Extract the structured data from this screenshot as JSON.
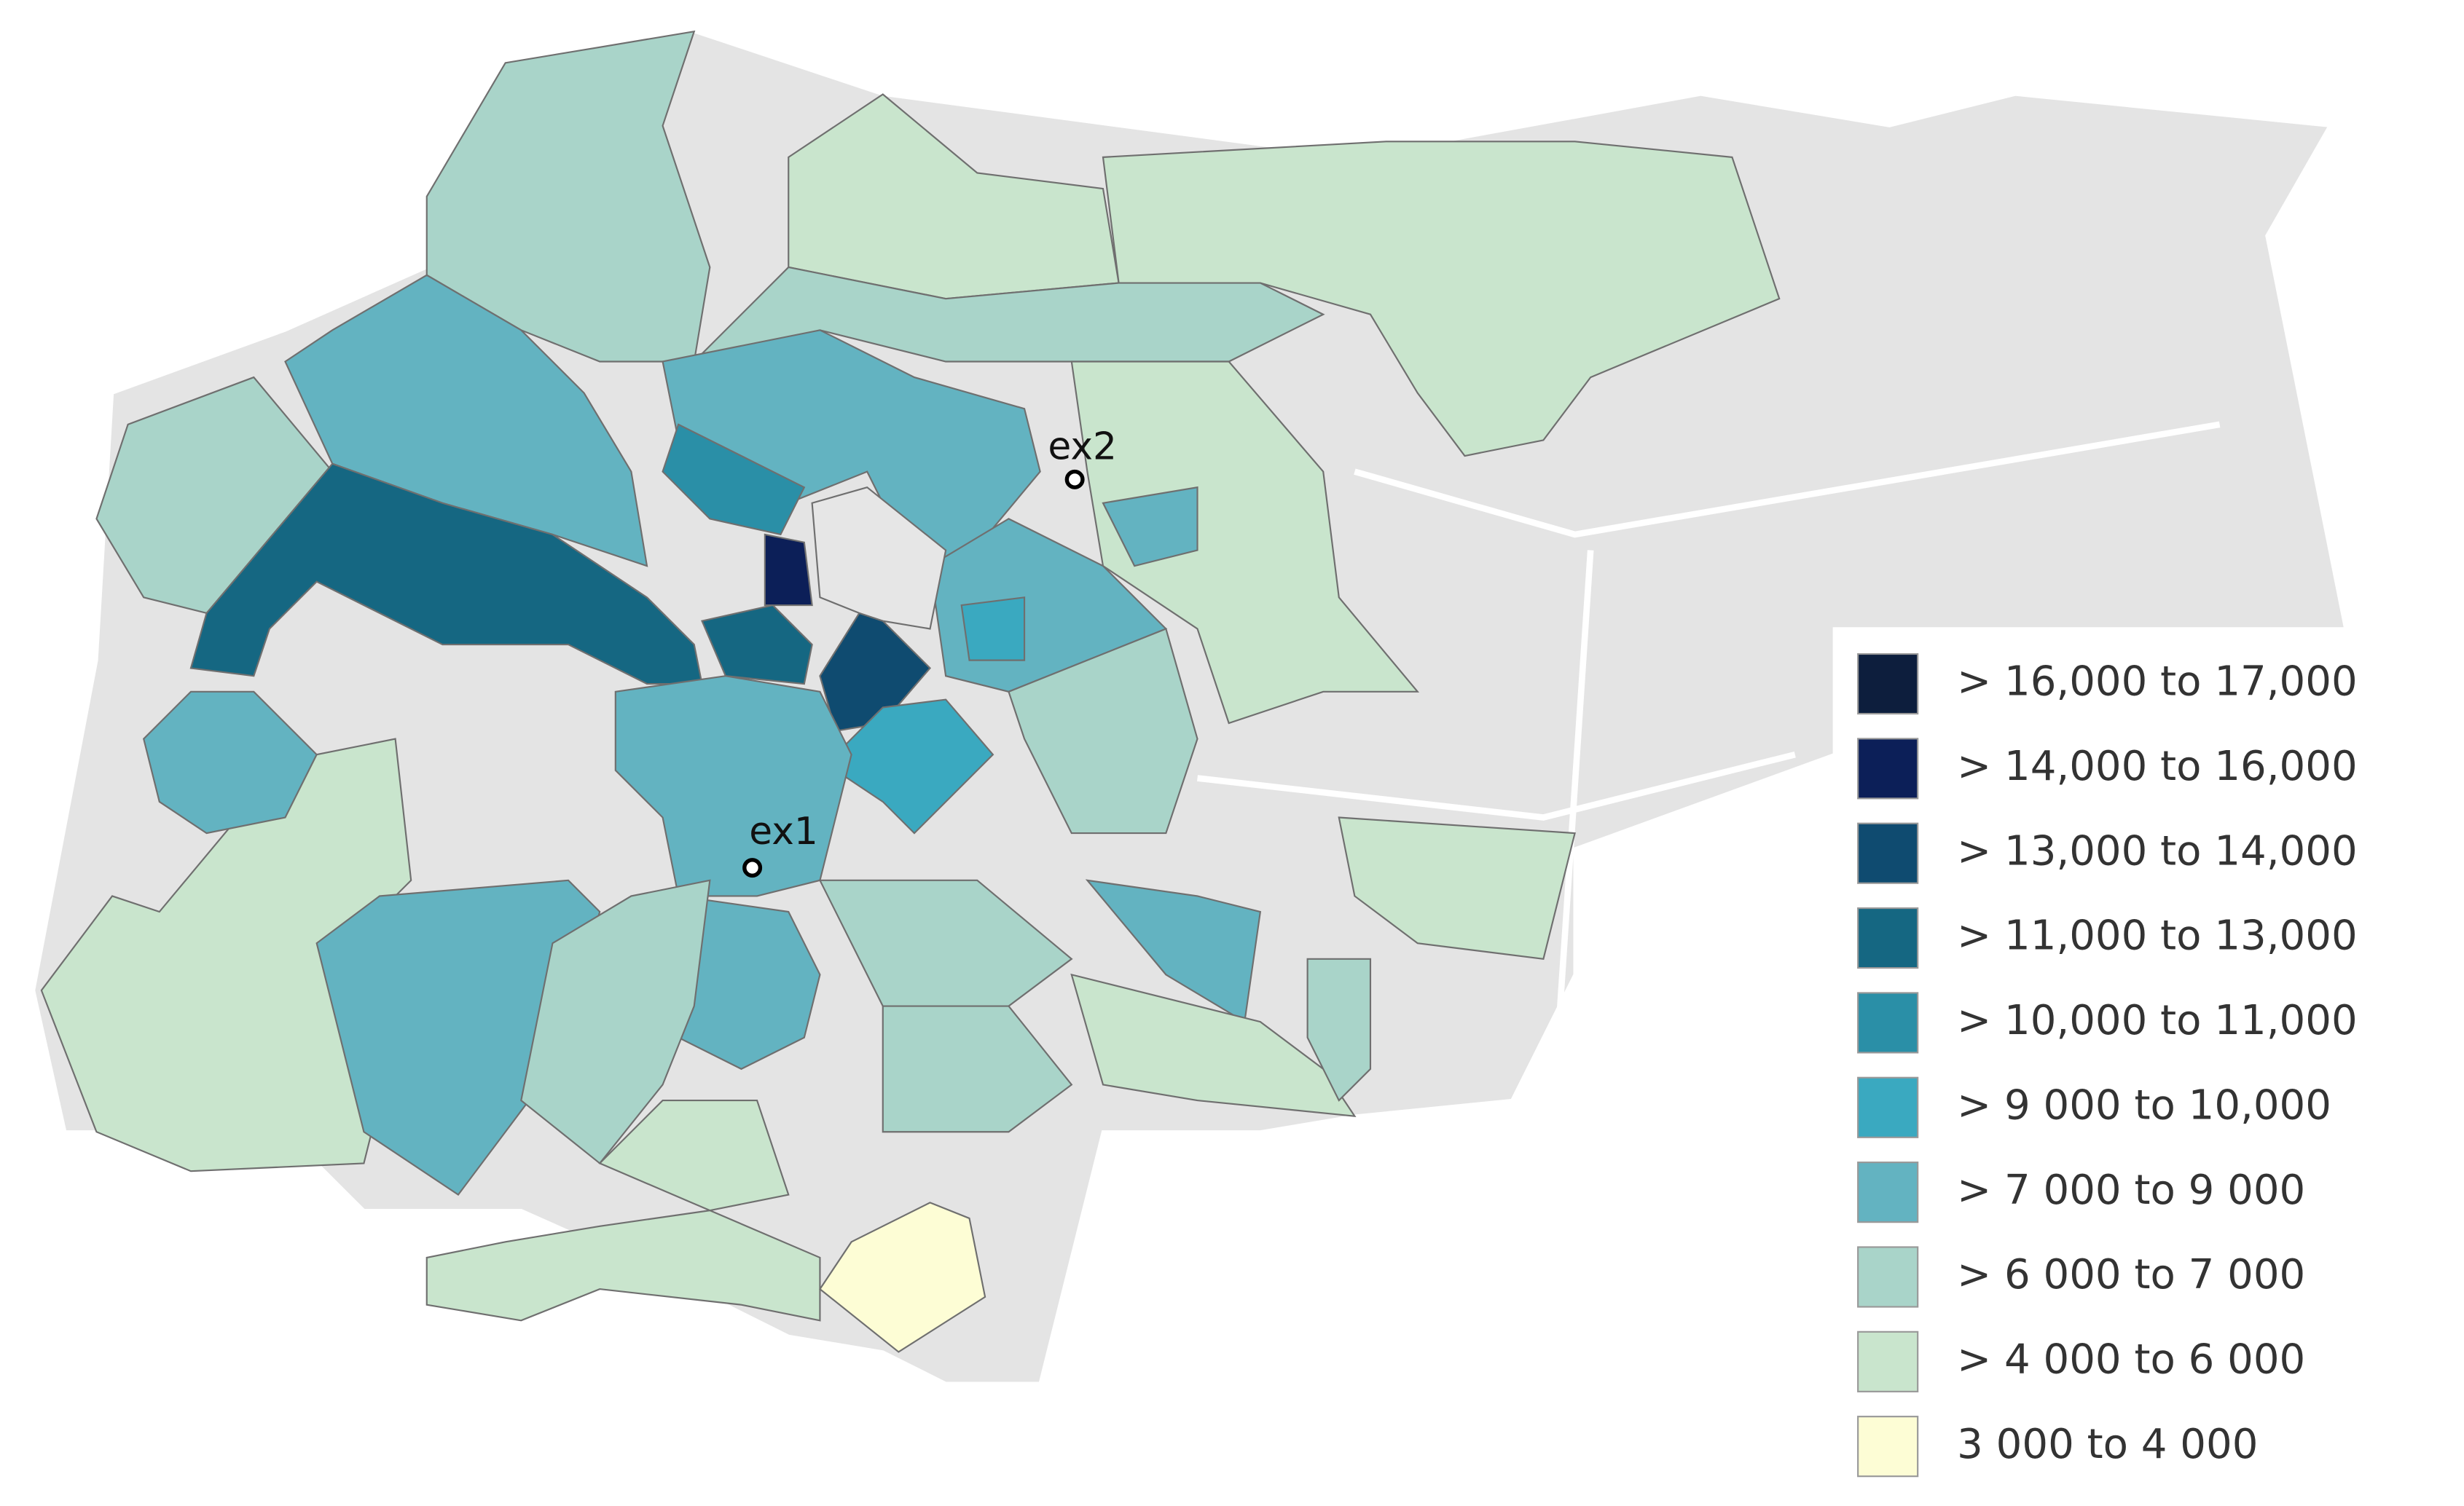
{
  "map": {
    "markers": [
      {
        "label": "ex1"
      },
      {
        "label": "ex2"
      }
    ],
    "legend": [
      {
        "label": "> 16,000 to 17,000",
        "color": "#0d1e3d"
      },
      {
        "label": "> 14,000 to 16,000",
        "color": "#0c1f58"
      },
      {
        "label": "> 13,000 to 14,000",
        "color": "#0f4b70"
      },
      {
        "label": "> 11,000 to 13,000",
        "color": "#156782"
      },
      {
        "label": "> 10,000 to 11,000",
        "color": "#2a8fa7"
      },
      {
        "label": "> 9 000 to 10,000",
        "color": "#3aa9c0"
      },
      {
        "label": "> 7 000 to 9 000",
        "color": "#63b3c1"
      },
      {
        "label": "> 6 000 to 7 000",
        "color": "#a9d4c9"
      },
      {
        "label": "> 4 000 to 6 000",
        "color": "#c9e5cd"
      },
      {
        "label": "3 000 to 4 000",
        "color": "#fdfdd5"
      }
    ]
  }
}
